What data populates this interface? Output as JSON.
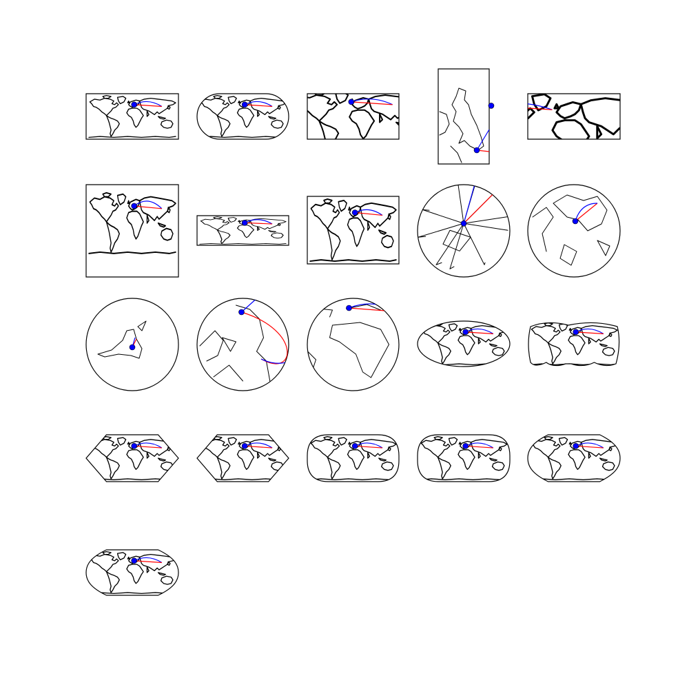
{
  "figure": {
    "background": "#ffffff",
    "outline_color": "#000000",
    "great_circle_color": "#0000ff",
    "rhumb_line_color": "#ff0000",
    "origin_marker_color": "#0000ff"
  },
  "panels": [
    {
      "id": "p1",
      "shape": "rect",
      "view": "world"
    },
    {
      "id": "p2",
      "shape": "rounded-oval",
      "view": "world"
    },
    {
      "id": "p3",
      "shape": "rect",
      "view": "world-zoomed"
    },
    {
      "id": "p4",
      "shape": "rect-tall",
      "view": "british-isles"
    },
    {
      "id": "p5",
      "shape": "rect",
      "view": "europe-atlantic"
    },
    {
      "id": "p6",
      "shape": "square",
      "view": "world-mercator"
    },
    {
      "id": "p7",
      "shape": "rect-flat",
      "view": "world"
    },
    {
      "id": "p8",
      "shape": "rect",
      "view": "world"
    },
    {
      "id": "p9",
      "shape": "circle",
      "view": "azimuthal-distorted"
    },
    {
      "id": "p10",
      "shape": "circle",
      "view": "world-azimuthal"
    },
    {
      "id": "p11",
      "shape": "circle",
      "view": "small-continents"
    },
    {
      "id": "p12",
      "shape": "circle",
      "view": "gnomonic-like"
    },
    {
      "id": "p13",
      "shape": "circle",
      "view": "orthographic-africa"
    },
    {
      "id": "p14",
      "shape": "ellipse",
      "view": "world"
    },
    {
      "id": "p15",
      "shape": "interrupted",
      "view": "world"
    },
    {
      "id": "p16",
      "shape": "hexagon",
      "view": "world"
    },
    {
      "id": "p17",
      "shape": "hexagon",
      "view": "world"
    },
    {
      "id": "p18",
      "shape": "rounded-rect",
      "view": "world"
    },
    {
      "id": "p19",
      "shape": "rounded-rect",
      "view": "world"
    },
    {
      "id": "p20",
      "shape": "sinusoid",
      "view": "world"
    },
    {
      "id": "p21",
      "shape": "sinusoid",
      "view": "world"
    }
  ]
}
